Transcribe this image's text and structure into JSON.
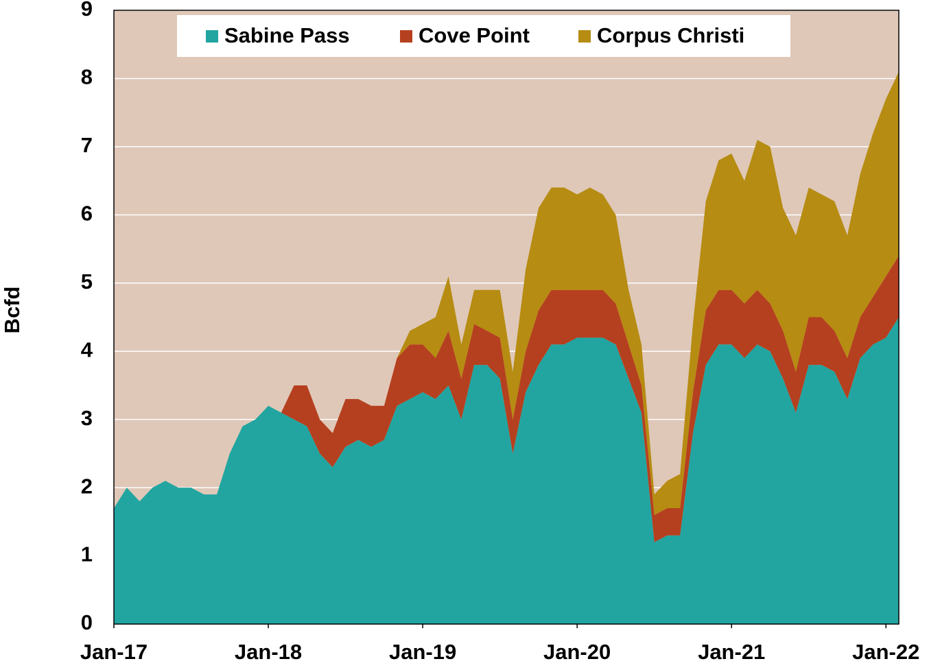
{
  "chart_data": {
    "type": "stacked-area",
    "y_label": "Bcfd",
    "categories": [
      "Jan-17",
      null,
      null,
      null,
      null,
      null,
      null,
      null,
      null,
      null,
      null,
      null,
      "Jan-18",
      null,
      null,
      null,
      null,
      null,
      null,
      null,
      null,
      null,
      null,
      null,
      "Jan-19",
      null,
      null,
      null,
      null,
      null,
      null,
      null,
      null,
      null,
      null,
      null,
      "Jan-20",
      null,
      null,
      null,
      null,
      null,
      null,
      null,
      null,
      null,
      null,
      null,
      "Jan-21",
      null,
      null,
      null,
      null,
      null,
      null,
      null,
      null,
      null,
      null,
      null,
      "Jan-22",
      null
    ],
    "series": [
      {
        "name": "Sabine Pass",
        "color": "#22a5a1",
        "values": [
          1.7,
          2.0,
          1.8,
          2.0,
          2.1,
          2.0,
          2.0,
          1.9,
          1.9,
          2.5,
          2.9,
          3.0,
          3.2,
          3.1,
          3.0,
          2.9,
          2.5,
          2.3,
          2.6,
          2.7,
          2.6,
          2.7,
          3.2,
          3.3,
          3.4,
          3.3,
          3.5,
          3.0,
          3.8,
          3.8,
          3.6,
          2.5,
          3.4,
          3.8,
          4.1,
          4.1,
          4.2,
          4.2,
          4.2,
          4.1,
          3.6,
          3.1,
          1.2,
          1.3,
          1.3,
          2.8,
          3.8,
          4.1,
          4.1,
          3.9,
          4.1,
          4.0,
          3.6,
          3.1,
          3.8,
          3.8,
          3.7,
          3.3,
          3.9,
          4.1,
          4.2,
          4.5
        ]
      },
      {
        "name": "Cove Point",
        "color": "#b5401f",
        "values": [
          0,
          0,
          0,
          0,
          0,
          0,
          0,
          0,
          0,
          0,
          0,
          0,
          0,
          0,
          0.5,
          0.6,
          0.5,
          0.5,
          0.7,
          0.6,
          0.6,
          0.5,
          0.7,
          0.8,
          0.7,
          0.6,
          0.8,
          0.6,
          0.6,
          0.5,
          0.6,
          0.5,
          0.6,
          0.8,
          0.8,
          0.8,
          0.7,
          0.7,
          0.7,
          0.6,
          0.5,
          0.4,
          0.4,
          0.4,
          0.4,
          0.6,
          0.8,
          0.8,
          0.8,
          0.8,
          0.8,
          0.7,
          0.7,
          0.6,
          0.7,
          0.7,
          0.6,
          0.6,
          0.6,
          0.7,
          0.9,
          0.9
        ]
      },
      {
        "name": "Corpus Christi",
        "color": "#b68c12",
        "values": [
          0,
          0,
          0,
          0,
          0,
          0,
          0,
          0,
          0,
          0,
          0,
          0,
          0,
          0,
          0,
          0,
          0,
          0,
          0,
          0,
          0,
          0,
          0,
          0.2,
          0.3,
          0.6,
          0.8,
          0.5,
          0.5,
          0.6,
          0.7,
          0.7,
          1.2,
          1.5,
          1.5,
          1.5,
          1.4,
          1.5,
          1.4,
          1.3,
          0.8,
          0.6,
          0.3,
          0.4,
          0.5,
          1.0,
          1.6,
          1.9,
          2.0,
          1.8,
          2.2,
          2.3,
          1.8,
          2.0,
          1.9,
          1.8,
          1.9,
          1.8,
          2.1,
          2.4,
          2.6,
          2.7
        ]
      }
    ],
    "ylim": [
      0,
      9
    ],
    "yticks": [
      0,
      1,
      2,
      3,
      4,
      5,
      6,
      7,
      8,
      9
    ],
    "grid": true,
    "legend": "top",
    "background": "#dfc8b8"
  }
}
